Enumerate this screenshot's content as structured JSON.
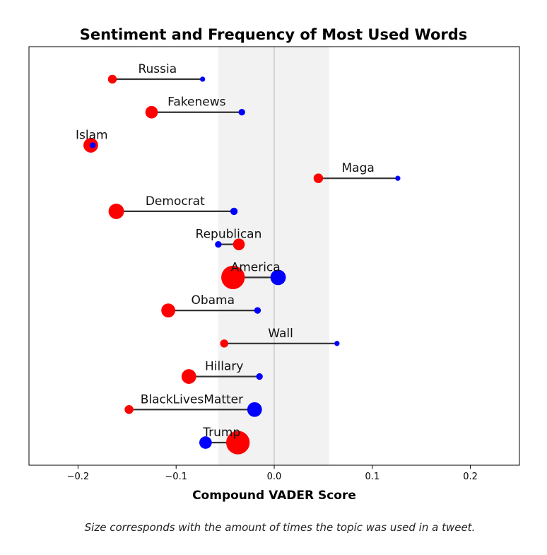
{
  "chart_data": {
    "type": "dumbbell",
    "title": "Sentiment and Frequency of Most Used Words",
    "xlabel": "Compound VADER Score",
    "ylabel": "",
    "xlim": [
      -0.25,
      0.25
    ],
    "xticks": [
      -0.2,
      -0.1,
      0.0,
      0.1,
      0.2
    ],
    "xtick_labels": [
      "−0.2",
      "−0.1",
      "0.0",
      "0.1",
      "0.2"
    ],
    "neutral_band": [
      -0.057,
      0.056
    ],
    "zero_line": true,
    "grid": false,
    "colors": {
      "red_series": "#ff0000",
      "blue_series": "#0000ff",
      "connector": "#333333",
      "band": "#f2f2f2"
    },
    "caption": "Size corresponds with the amount of times the topic was used in a tweet.",
    "words": [
      {
        "label": "Russia",
        "red": -0.165,
        "blue": -0.073,
        "red_size": 1.2,
        "blue_size": 0.7
      },
      {
        "label": "Fakenews",
        "red": -0.125,
        "blue": -0.033,
        "red_size": 1.7,
        "blue_size": 0.9
      },
      {
        "label": "Islam",
        "red": -0.187,
        "blue": -0.185,
        "red_size": 2.0,
        "blue_size": 0.8
      },
      {
        "label": "Maga",
        "red": 0.045,
        "blue": 0.126,
        "red_size": 1.3,
        "blue_size": 0.7
      },
      {
        "label": "Democrat",
        "red": -0.161,
        "blue": -0.041,
        "red_size": 2.1,
        "blue_size": 1.0
      },
      {
        "label": "Republican",
        "red": -0.036,
        "blue": -0.057,
        "red_size": 1.6,
        "blue_size": 0.9
      },
      {
        "label": "America",
        "red": -0.042,
        "blue": 0.004,
        "red_size": 3.2,
        "blue_size": 2.1
      },
      {
        "label": "Obama",
        "red": -0.108,
        "blue": -0.017,
        "red_size": 1.9,
        "blue_size": 0.9
      },
      {
        "label": "Wall",
        "red": -0.051,
        "blue": 0.064,
        "red_size": 1.1,
        "blue_size": 0.7
      },
      {
        "label": "Hillary",
        "red": -0.087,
        "blue": -0.015,
        "red_size": 2.0,
        "blue_size": 0.9
      },
      {
        "label": "BlackLivesMatter",
        "red": -0.148,
        "blue": -0.02,
        "red_size": 1.2,
        "blue_size": 2.0
      },
      {
        "label": "Trump",
        "red": -0.037,
        "blue": -0.07,
        "red_size": 3.2,
        "blue_size": 1.7
      }
    ]
  }
}
